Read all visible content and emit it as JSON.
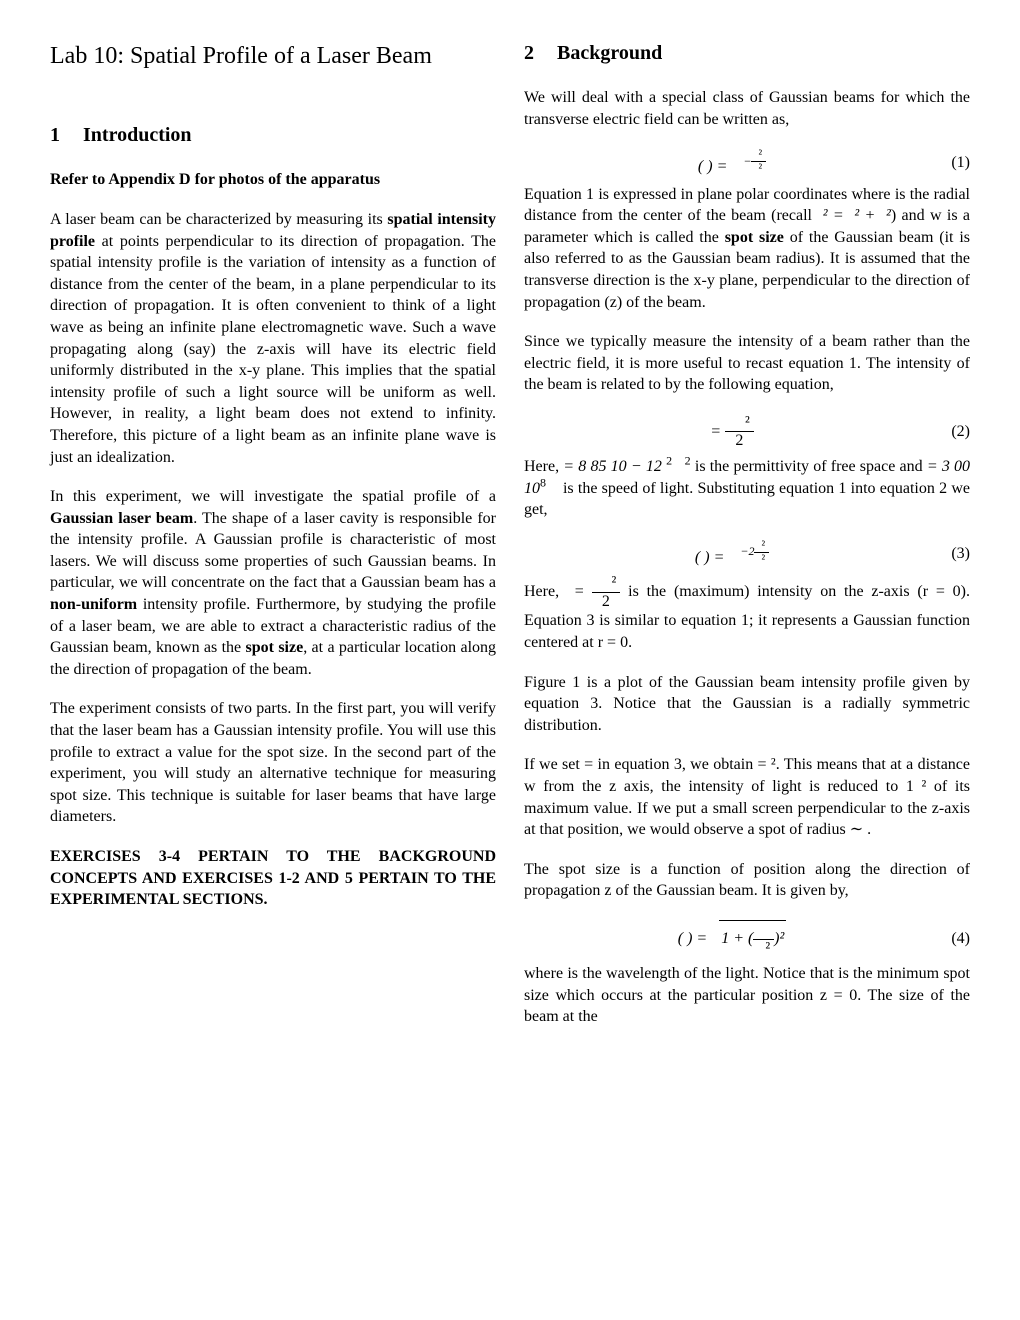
{
  "labTitle": "Lab 10: Spatial Profile of a Laser Beam",
  "sec1": {
    "num": "1",
    "title": "Introduction",
    "appendixNote": "Refer to Appendix D for photos of the apparatus",
    "p1a": "A laser beam can be characterized by measuring its ",
    "p1b": "spatial intensity profile",
    "p1c": " at points perpendicular to its direction of propagation. The spatial intensity profile is the variation of intensity as a function of distance from the center of the beam, in a plane perpendicular to its direction of propagation. It is often convenient to think of a light wave as being an infinite plane electromagnetic wave. Such a wave propagating along (say) the z-axis will have its electric field uniformly distributed in the x-y plane. This implies that the spatial intensity profile of such a light source will be uniform as well. However, in reality, a light beam does not extend to infinity. Therefore, this picture of a light beam as an infinite plane wave is just an idealization.",
    "p2a": "In this experiment, we will investigate the spatial profile of a ",
    "p2b": "Gaussian laser beam",
    "p2c": ". The shape of a laser cavity is responsible for the intensity profile. A Gaussian profile is characteristic of most lasers. We will discuss some properties of such Gaussian beams. In particular, we will concentrate on the fact that a Gaussian beam has a ",
    "p2d": "non-uniform",
    "p2e": " intensity profile. Furthermore, by studying the profile of a laser beam, we are able to extract a characteristic radius of the Gaussian beam, known as the ",
    "p2f": "spot size",
    "p2g": ", at a particular location along the direction of propagation of the beam.",
    "p3": "The experiment consists of two parts. In the first part, you will verify that the laser beam has a Gaussian intensity profile. You will use this profile to extract a value for the spot size. In the second part of the experiment, you will study an alternative technique for measuring spot size. This technique is suitable for laser beams that have large diameters.",
    "exNote": "EXERCISES 3-4 PERTAIN TO THE BACKGROUND CONCEPTS AND EXERCISES 1-2 AND 5 PERTAIN TO THE EXPERIMENTAL SECTIONS."
  },
  "sec2": {
    "num": "2",
    "title": "Background",
    "p1": "We will deal with a special class of Gaussian beams for which the transverse electric field can be written as,",
    "eq1": {
      "no": "(1)"
    },
    "p2a": "Equation 1 is expressed in plane polar coordinates where ",
    "p2b": " is the radial distance from the center of the beam (recall ",
    "p2c": ") and w is a parameter which is called the ",
    "p2d": "spot size",
    "p2e": " of the Gaussian beam (it is also referred to as the Gaussian beam radius). It is assumed that the transverse direction is the x-y plane, perpendicular to the direction of propagation (z) of the beam.",
    "p3": "Since we typically measure the intensity of a beam rather than the electric field, it is more useful to recast equation 1. The intensity   of the beam is related to   by the following equation,",
    "eq2": {
      "no": "(2)"
    },
    "p4a": "Here, ",
    "p4b": " is the permittivity of free space and ",
    "p4c": " is the speed of light. Substituting equation 1 into equation 2 we get,",
    "eq3": {
      "no": "(3)"
    },
    "p5a": "Here, ",
    "p5b": " is the (maximum) intensity on the z-axis (r = 0). Equation 3 is similar to equation 1; it represents a Gaussian function centered at r = 0.",
    "p6": "Figure 1 is a plot of the Gaussian beam intensity profile given by equation 3. Notice that the Gaussian is a radially symmetric distribution.",
    "p7": "If we set   =   in equation 3, we obtain   =   ². This means that at a distance w from the z axis, the intensity of light is reduced to 1  ² of its maximum value. If we put a small screen perpendicular to the z-axis at that position, we would observe a spot of radius ∼  .",
    "p8": "The spot size is a function of position along the direction of propagation z of the Gaussian beam. It is given by,",
    "eq4": {
      "no": "(4)"
    },
    "p9": "where   is the wavelength of the light. Notice that   is the minimum spot size which occurs at the particular position z = 0. The size of the beam at the",
    "consts": {
      "eps": " = 8 85  10 − 12  ",
      "c": " = 3 00  10"
    }
  }
}
